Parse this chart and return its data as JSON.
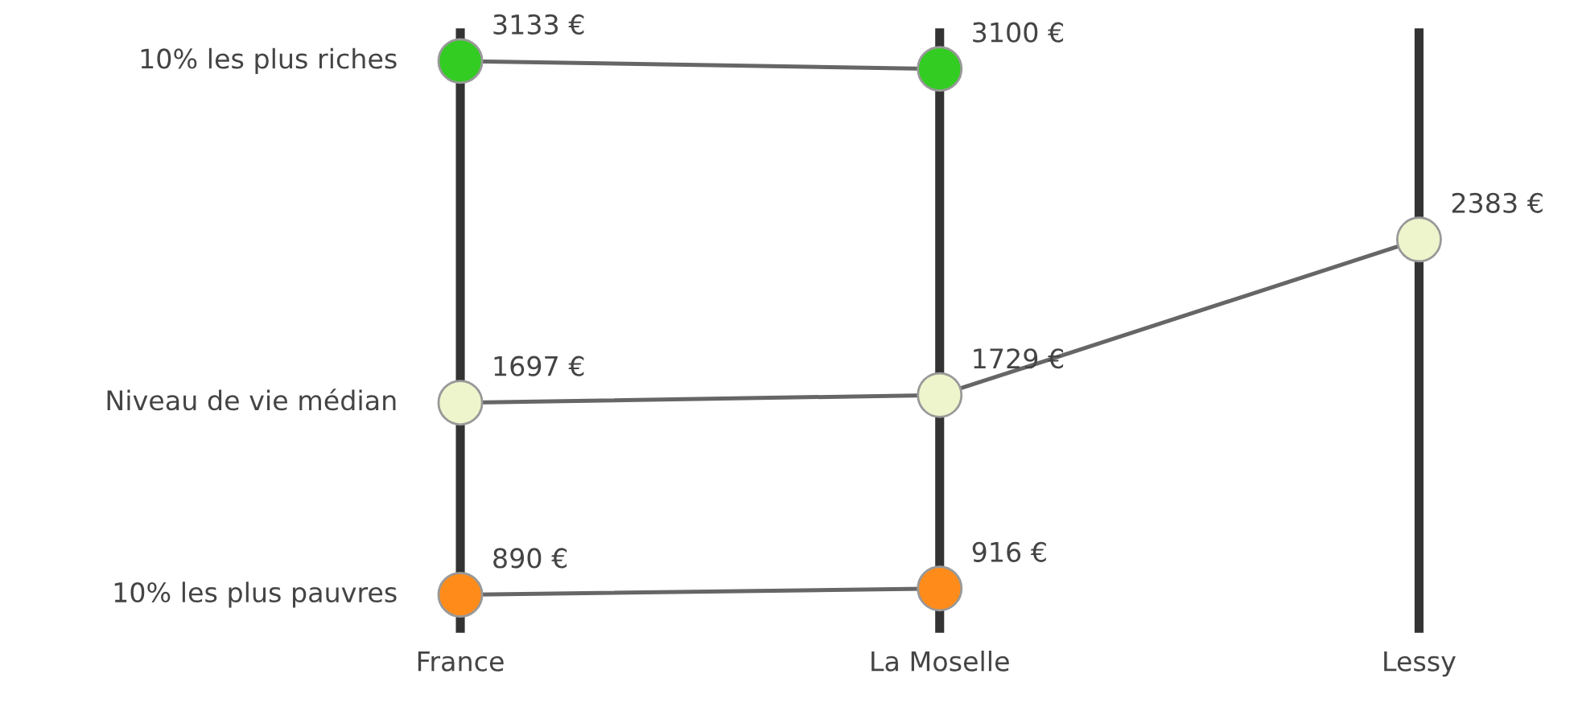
{
  "chart_data": {
    "type": "line",
    "categories": [
      "France",
      "La Moselle",
      "Lessy"
    ],
    "series": [
      {
        "name": "10% les plus riches",
        "color": "#33cc22",
        "values": [
          3133,
          3100,
          null
        ],
        "value_labels": [
          "3133 €",
          "3100 €",
          null
        ]
      },
      {
        "name": "Niveau de vie médian",
        "color": "#eef5cc",
        "values": [
          1697,
          1729,
          2383
        ],
        "value_labels": [
          "1697 €",
          "1729 €",
          "2383 €"
        ]
      },
      {
        "name": "10% les plus pauvres",
        "color": "#ff8c1a",
        "values": [
          890,
          916,
          null
        ],
        "value_labels": [
          "890 €",
          "916 €",
          null
        ]
      }
    ],
    "ylim": [
      730,
      3270
    ],
    "grid": "x",
    "legend": false,
    "marker": "circle",
    "line_style": "solid"
  }
}
